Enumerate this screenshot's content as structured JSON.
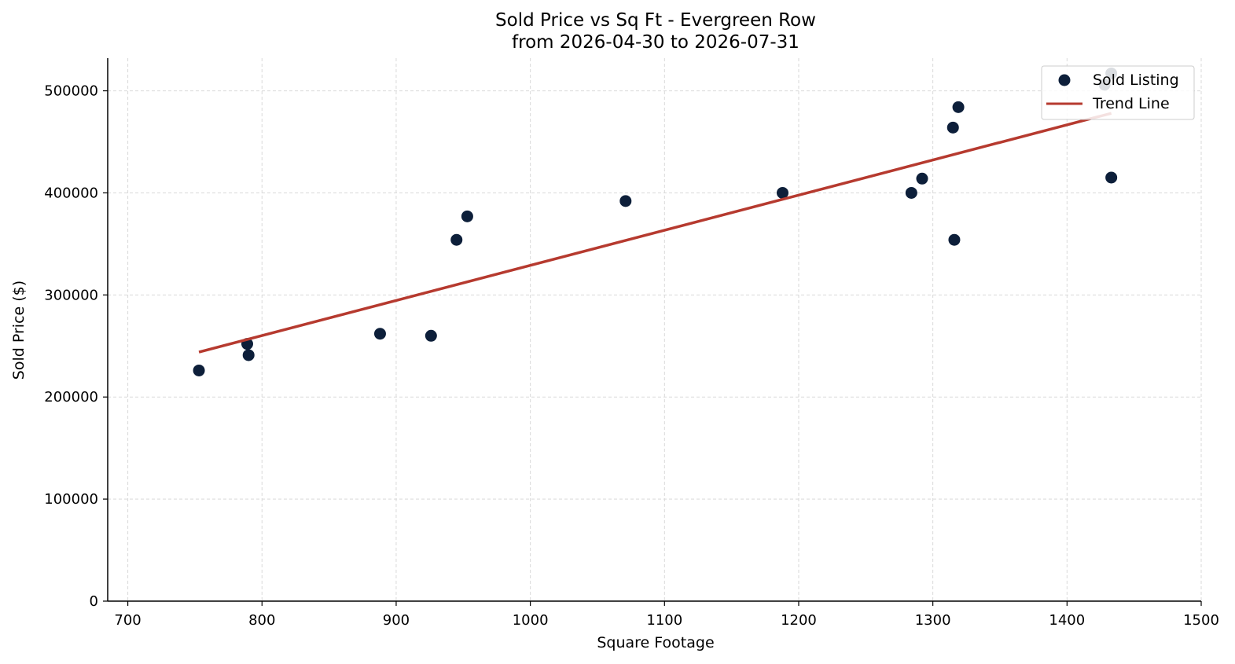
{
  "chart_data": {
    "type": "scatter",
    "title": "Sold Price vs Sq Ft - Evergreen Row",
    "subtitle": "from 2026-04-30 to 2026-07-31",
    "xlabel": "Square Footage",
    "ylabel": "Sold Price ($)",
    "xlim": [
      685,
      1500
    ],
    "ylim": [
      0,
      532000
    ],
    "xticks": [
      "700",
      "800",
      "900",
      "1000",
      "1100",
      "1200",
      "1300",
      "1400",
      "1500"
    ],
    "yticks": [
      "0",
      "100000",
      "200000",
      "300000",
      "400000",
      "500000"
    ],
    "grid": true,
    "legend_position": "top-right",
    "series": [
      {
        "name": "Sold Listing",
        "kind": "scatter",
        "color": "#0d1f3a",
        "points": [
          {
            "x": 753,
            "y": 226000
          },
          {
            "x": 789,
            "y": 252000
          },
          {
            "x": 790,
            "y": 241000
          },
          {
            "x": 888,
            "y": 262000
          },
          {
            "x": 926,
            "y": 260000
          },
          {
            "x": 945,
            "y": 354000
          },
          {
            "x": 953,
            "y": 377000
          },
          {
            "x": 1071,
            "y": 392000
          },
          {
            "x": 1188,
            "y": 400000
          },
          {
            "x": 1284,
            "y": 400000
          },
          {
            "x": 1292,
            "y": 414000
          },
          {
            "x": 1315,
            "y": 464000
          },
          {
            "x": 1316,
            "y": 354000
          },
          {
            "x": 1319,
            "y": 484000
          },
          {
            "x": 1428,
            "y": 506000
          },
          {
            "x": 1433,
            "y": 517000
          },
          {
            "x": 1433,
            "y": 415000
          }
        ]
      },
      {
        "name": "Trend Line",
        "kind": "line",
        "color": "#b63a2f",
        "points": [
          {
            "x": 753,
            "y": 244000
          },
          {
            "x": 1433,
            "y": 478000
          }
        ]
      }
    ]
  }
}
